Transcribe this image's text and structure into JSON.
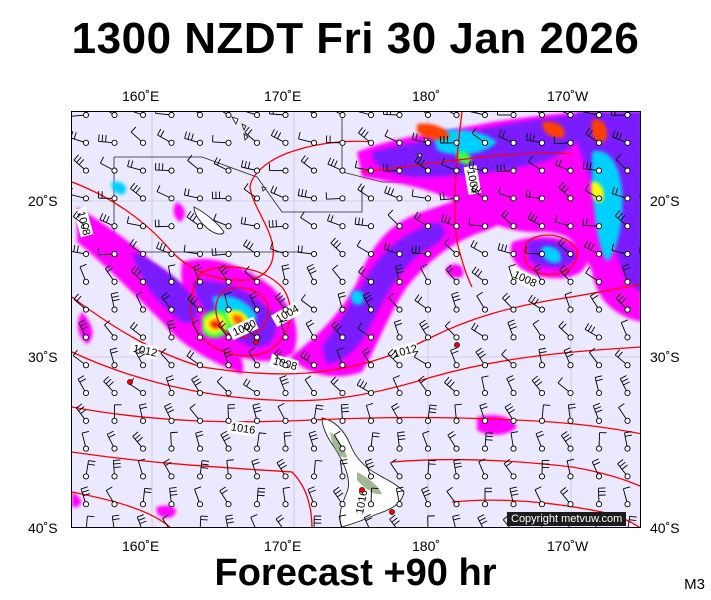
{
  "title": "1300 NZDT Fri 30 Jan 2026",
  "footer": "Forecast +90 hr",
  "model_label": "M3",
  "copyright": "Copyright metvuw.com",
  "map": {
    "lon_labels": [
      "160˚E",
      "170˚E",
      "180˚",
      "170˚W"
    ],
    "lat_labels": [
      "20˚S",
      "30˚S",
      "40˚S"
    ],
    "isobar_labels": [
      "1000",
      "1004",
      "1004",
      "1008",
      "1008",
      "1008",
      "1012",
      "1012",
      "1016",
      "1016"
    ],
    "colors": {
      "background": "#ebe9ff",
      "isobar": "#ff0000",
      "rain_light": "#ff00ff",
      "rain_mid": "#7a1fff",
      "rain_heavy": "#00d0ff",
      "rain_extreme": "#ff4000"
    }
  }
}
